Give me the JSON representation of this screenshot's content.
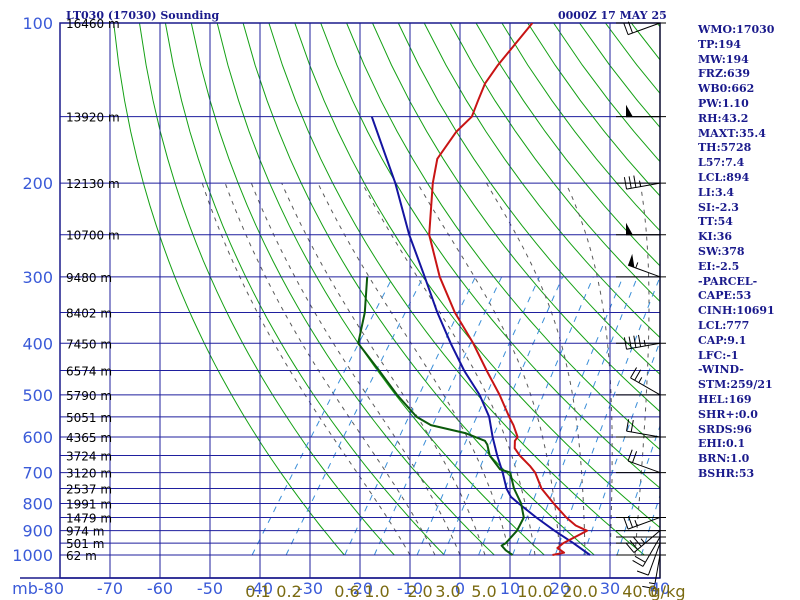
{
  "header": {
    "station": "LT030 (17030) Sounding",
    "time": "0000Z 17 MAY 25"
  },
  "stats": [
    "WMO:17030",
    "TP:194",
    "MW:194",
    "FRZ:639",
    "WB0:662",
    "PW:1.10",
    "RH:43.2",
    "MAXT:35.4",
    "TH:5728",
    "L57:7.4",
    "LCL:894",
    "LI:3.4",
    "SI:-2.3",
    "TT:54",
    "KI:36",
    "SW:378",
    "EI:-2.5",
    "-PARCEL-",
    "CAPE:53",
    "CINH:10691",
    "LCL:777",
    "CAP:9.1",
    "LFC:-1",
    "-WIND-",
    "STM:259/21",
    "HEL:169",
    "SHR+:0.0",
    "SRDS:96",
    "EHI:0.1",
    "BRN:1.0",
    "BSHR:53"
  ],
  "colors": {
    "frame": "#1a1a8c",
    "grid": "#1f1f9e",
    "dry_adiabat": "#14a014",
    "moist_adiabat": "#5a5a5a",
    "mixing_ratio": "#3a8ed8",
    "temperature": "#c81414",
    "dewpoint": "#0b5a0b",
    "parcel": "#1414a0",
    "axis_text": "#3a5ad8",
    "mixing_text": "#7a6a10"
  },
  "chart_data": {
    "type": "skew-t",
    "pressure_axis_unit": "mb",
    "pressure_levels": [
      100,
      200,
      300,
      400,
      500,
      600,
      700,
      800,
      900,
      1000
    ],
    "temperature_ticks": [
      -80,
      -70,
      -60,
      -50,
      -40,
      -30,
      -20,
      -10,
      0,
      10,
      20,
      30,
      40
    ],
    "temperature_labels": [
      "mb-80",
      "-70",
      "-60",
      "-50",
      "-40",
      "-30",
      "-20",
      "-10",
      "0",
      "10",
      "20",
      "30",
      "40"
    ],
    "height_labels": [
      {
        "p": 100,
        "text": "16460 m"
      },
      {
        "p": 150,
        "text": "13920 m"
      },
      {
        "p": 200,
        "text": "12130 m"
      },
      {
        "p": 250,
        "text": "10700 m"
      },
      {
        "p": 300,
        "text": "9480 m"
      },
      {
        "p": 350,
        "text": "8402 m"
      },
      {
        "p": 400,
        "text": "7450 m"
      },
      {
        "p": 450,
        "text": "6574 m"
      },
      {
        "p": 500,
        "text": "5790 m"
      },
      {
        "p": 550,
        "text": "5051 m"
      },
      {
        "p": 600,
        "text": "4365 m"
      },
      {
        "p": 650,
        "text": "3724 m"
      },
      {
        "p": 700,
        "text": "3120 m"
      },
      {
        "p": 750,
        "text": "2537 m"
      },
      {
        "p": 800,
        "text": "1991 m"
      },
      {
        "p": 850,
        "text": "1479 m"
      },
      {
        "p": 900,
        "text": "974 m"
      },
      {
        "p": 950,
        "text": "501 m"
      },
      {
        "p": 1000,
        "text": "62 m"
      }
    ],
    "mixing_ratio_labels": [
      "0.1",
      "0.2",
      "0.6",
      "1.0",
      "2.0",
      "3.0",
      "5.0",
      "10.0",
      "20.0",
      "40.0",
      "g/kg"
    ],
    "temperature_profile": [
      {
        "p": 1000,
        "t": 18.5
      },
      {
        "p": 990,
        "t": 20.5
      },
      {
        "p": 970,
        "t": 18.5
      },
      {
        "p": 950,
        "t": 19.0
      },
      {
        "p": 925,
        "t": 20.5
      },
      {
        "p": 900,
        "t": 22.0
      },
      {
        "p": 880,
        "t": 19.0
      },
      {
        "p": 850,
        "t": 16.0
      },
      {
        "p": 800,
        "t": 11.5
      },
      {
        "p": 750,
        "t": 7.0
      },
      {
        "p": 700,
        "t": 3.5
      },
      {
        "p": 680,
        "t": 1.5
      },
      {
        "p": 650,
        "t": -2.0
      },
      {
        "p": 630,
        "t": -4.0
      },
      {
        "p": 610,
        "t": -5.0
      },
      {
        "p": 600,
        "t": -5.0
      },
      {
        "p": 570,
        "t": -7.5
      },
      {
        "p": 550,
        "t": -9.5
      },
      {
        "p": 500,
        "t": -14.5
      },
      {
        "p": 450,
        "t": -20.5
      },
      {
        "p": 400,
        "t": -27.0
      },
      {
        "p": 350,
        "t": -35.0
      },
      {
        "p": 300,
        "t": -43.0
      },
      {
        "p": 250,
        "t": -51.0
      },
      {
        "p": 200,
        "t": -57.5
      },
      {
        "p": 180,
        "t": -60.0
      },
      {
        "p": 160,
        "t": -60.0
      },
      {
        "p": 150,
        "t": -59.0
      },
      {
        "p": 140,
        "t": -60.0
      },
      {
        "p": 130,
        "t": -61.0
      },
      {
        "p": 120,
        "t": -61.0
      },
      {
        "p": 100,
        "t": -60.0
      }
    ],
    "dewpoint_profile": [
      {
        "p": 1000,
        "t": 10.5
      },
      {
        "p": 980,
        "t": 8.5
      },
      {
        "p": 960,
        "t": 7.0
      },
      {
        "p": 950,
        "t": 7.5
      },
      {
        "p": 900,
        "t": 8.0
      },
      {
        "p": 850,
        "t": 7.5
      },
      {
        "p": 800,
        "t": 5.0
      },
      {
        "p": 750,
        "t": 1.5
      },
      {
        "p": 700,
        "t": -1.5
      },
      {
        "p": 690,
        "t": -4.0
      },
      {
        "p": 650,
        "t": -8.0
      },
      {
        "p": 620,
        "t": -10.0
      },
      {
        "p": 610,
        "t": -11.0
      },
      {
        "p": 590,
        "t": -16.0
      },
      {
        "p": 570,
        "t": -24.0
      },
      {
        "p": 550,
        "t": -28.0
      },
      {
        "p": 500,
        "t": -35.0
      },
      {
        "p": 450,
        "t": -42.0
      },
      {
        "p": 400,
        "t": -50.0
      },
      {
        "p": 350,
        "t": -53.0
      },
      {
        "p": 300,
        "t": -57.5
      }
    ],
    "parcel_profile": [
      {
        "p": 1000,
        "t": 26.0
      },
      {
        "p": 950,
        "t": 21.0
      },
      {
        "p": 900,
        "t": 15.5
      },
      {
        "p": 850,
        "t": 10.0
      },
      {
        "p": 800,
        "t": 4.5
      },
      {
        "p": 777,
        "t": 2.0
      },
      {
        "p": 750,
        "t": 0.0
      },
      {
        "p": 700,
        "t": -3.0
      },
      {
        "p": 650,
        "t": -6.5
      },
      {
        "p": 600,
        "t": -10.0
      },
      {
        "p": 550,
        "t": -13.5
      },
      {
        "p": 500,
        "t": -18.5
      },
      {
        "p": 450,
        "t": -25.0
      },
      {
        "p": 400,
        "t": -31.5
      },
      {
        "p": 350,
        "t": -38.5
      },
      {
        "p": 300,
        "t": -46.0
      },
      {
        "p": 250,
        "t": -55.0
      },
      {
        "p": 200,
        "t": -65.0
      },
      {
        "p": 150,
        "t": -79.0
      }
    ],
    "wind_barbs": [
      {
        "p": 100,
        "dir": 250,
        "spd": 20
      },
      {
        "p": 150,
        "dir": 270,
        "spd": 50
      },
      {
        "p": 200,
        "dir": 260,
        "spd": 35
      },
      {
        "p": 250,
        "dir": 270,
        "spd": 50
      },
      {
        "p": 300,
        "dir": 290,
        "spd": 55
      },
      {
        "p": 400,
        "dir": 260,
        "spd": 45
      },
      {
        "p": 500,
        "dir": 300,
        "spd": 25
      },
      {
        "p": 600,
        "dir": 280,
        "spd": 20
      },
      {
        "p": 700,
        "dir": 290,
        "spd": 20
      },
      {
        "p": 850,
        "dir": 250,
        "spd": 25
      },
      {
        "p": 900,
        "dir": 230,
        "spd": 35
      },
      {
        "p": 925,
        "dir": 210,
        "spd": 20
      },
      {
        "p": 950,
        "dir": 200,
        "spd": 10
      },
      {
        "p": 1000,
        "dir": 190,
        "spd": 15
      }
    ],
    "grid": true
  }
}
